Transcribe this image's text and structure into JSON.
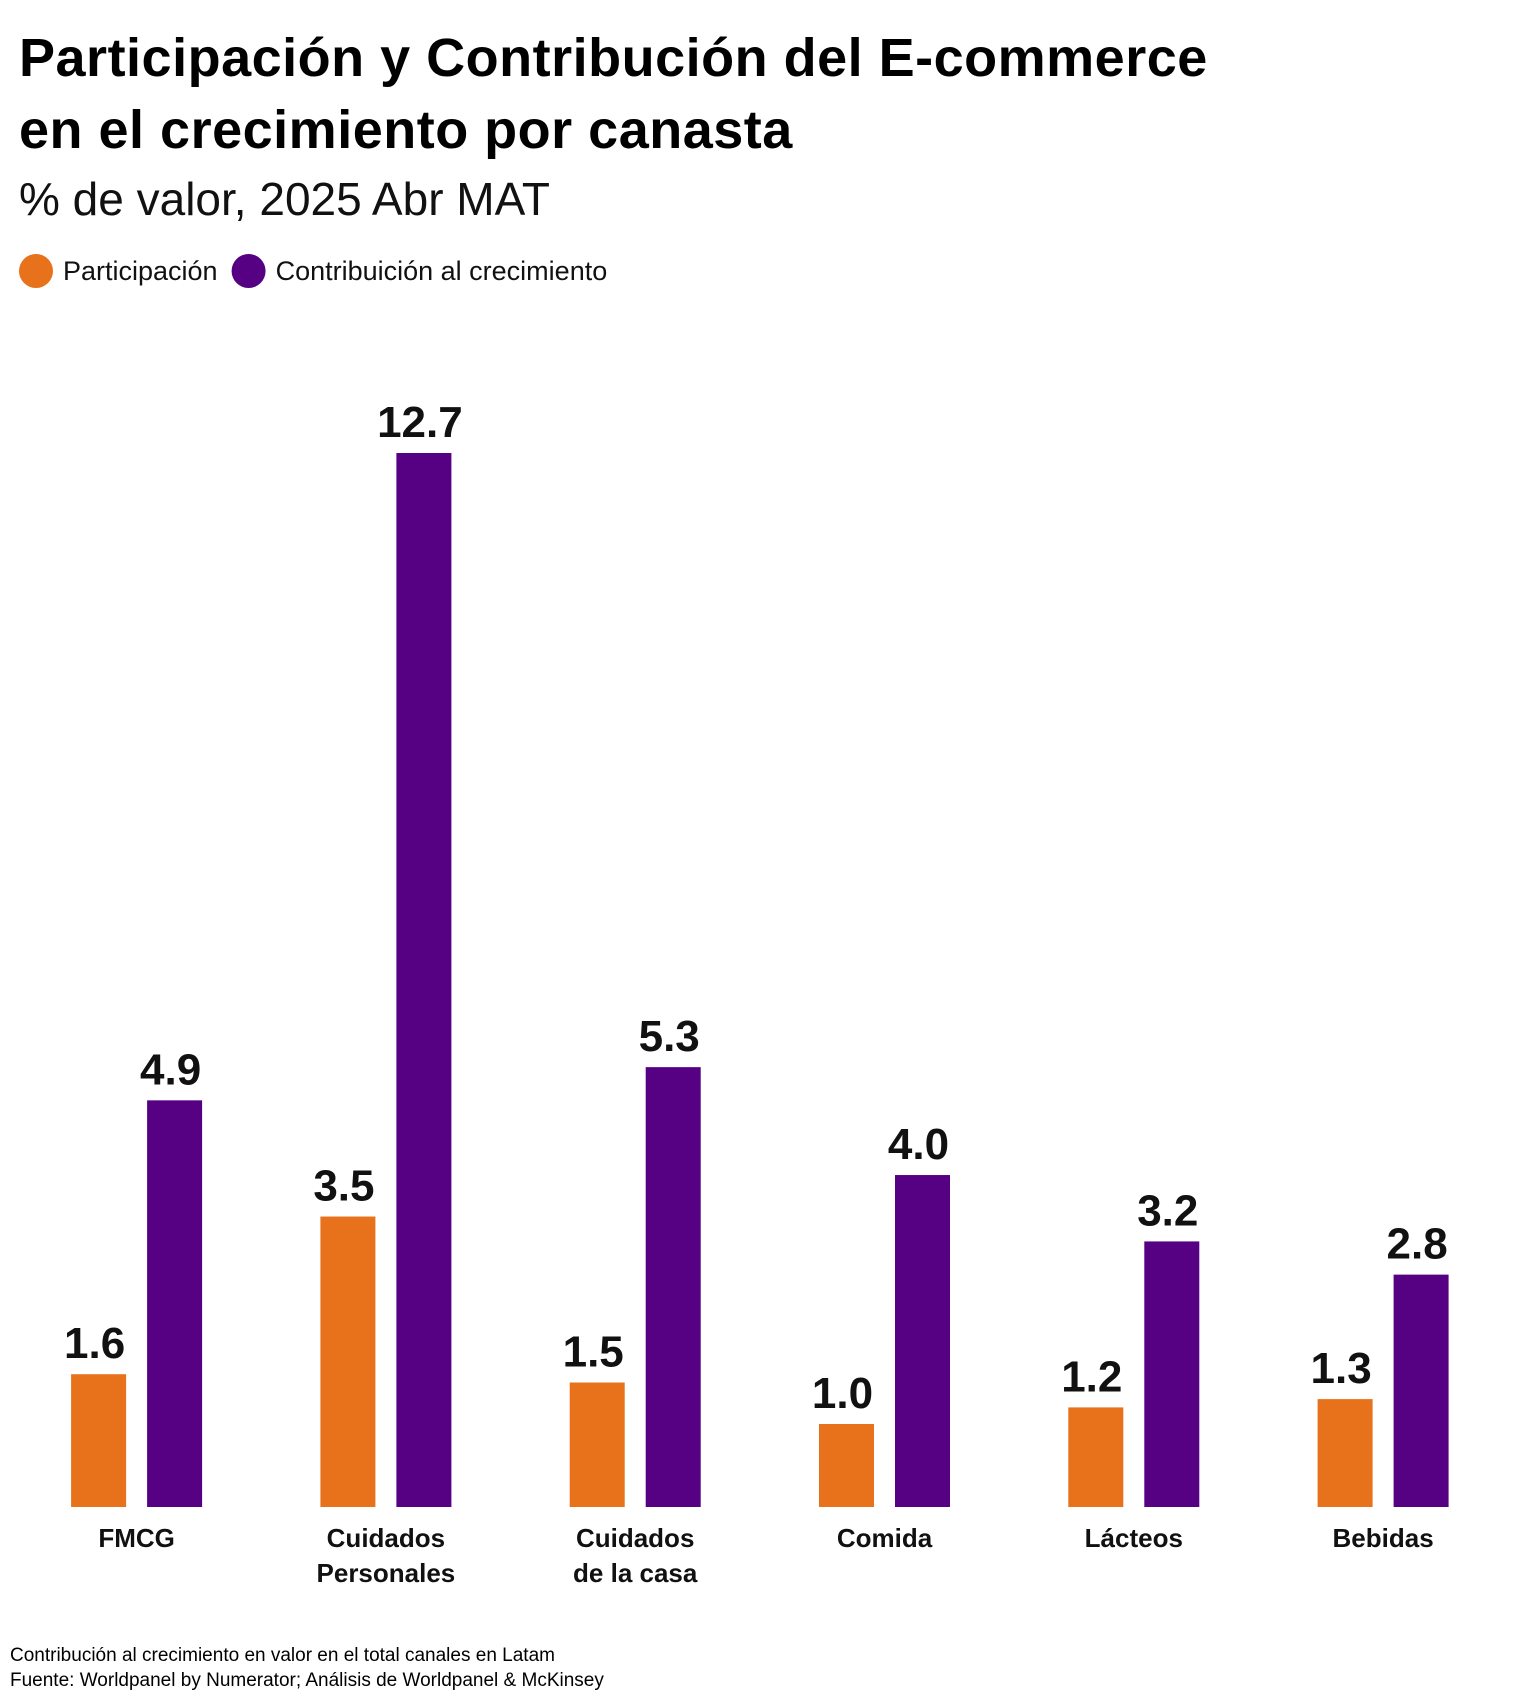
{
  "chart_data": {
    "type": "bar",
    "title": "Participación y Contribución del E-commerce\nen el crecimiento por canasta",
    "subtitle": "% de valor, 2025 Abr MAT",
    "categories": [
      "FMCG",
      "Cuidados\nPersonales",
      "Cuidados\nde la casa",
      "Comida",
      "Lácteos",
      "Bebidas"
    ],
    "series": [
      {
        "name": "Participación",
        "color": "#e8711b",
        "values": [
          1.6,
          3.5,
          1.5,
          1.0,
          1.2,
          1.3
        ],
        "value_labels": [
          "1.6",
          "3.5",
          "1.5",
          "1.0",
          "1.2",
          "1.3"
        ]
      },
      {
        "name": "Contribuición al crecimiento",
        "color": "#560084",
        "values": [
          4.9,
          12.7,
          5.3,
          4.0,
          3.2,
          2.8
        ],
        "value_labels": [
          "4.9",
          "12.7",
          "5.3",
          "4.0",
          "3.2",
          "2.8"
        ]
      }
    ],
    "notes": [
      "Contribución al crecimiento en valor en el total canales en Latam",
      "Fuente: Worldpanel by Numerator; Análisis de Worldpanel & McKinsey"
    ]
  }
}
